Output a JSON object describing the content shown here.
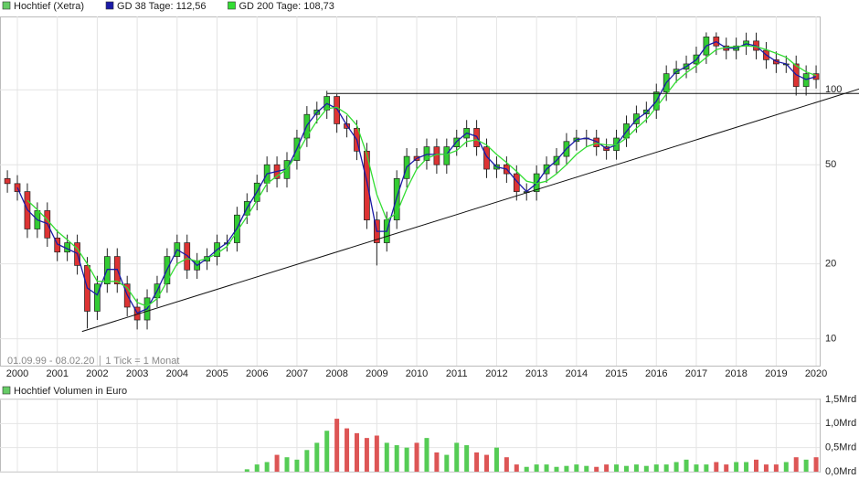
{
  "chart_data": [
    {
      "type": "candlestick",
      "name": "Hochtief (Xetra)",
      "color": "#66cc66",
      "up_color": "#33cc33",
      "down_color": "#dd3333",
      "x": [
        1999.75,
        2000,
        2000.25,
        2000.5,
        2000.75,
        2001,
        2001.25,
        2001.5,
        2001.75,
        2002,
        2002.25,
        2002.5,
        2002.75,
        2003,
        2003.25,
        2003.5,
        2003.75,
        2004,
        2004.25,
        2004.5,
        2004.75,
        2005,
        2005.25,
        2005.5,
        2005.75,
        2006,
        2006.25,
        2006.5,
        2006.75,
        2007,
        2007.25,
        2007.5,
        2007.75,
        2008,
        2008.25,
        2008.5,
        2008.75,
        2009,
        2009.25,
        2009.5,
        2009.75,
        2010,
        2010.25,
        2010.5,
        2010.75,
        2011,
        2011.25,
        2011.5,
        2011.75,
        2012,
        2012.25,
        2012.5,
        2012.75,
        2013,
        2013.25,
        2013.5,
        2013.75,
        2014,
        2014.25,
        2014.5,
        2014.75,
        2015,
        2015.25,
        2015.5,
        2015.75,
        2016,
        2016.25,
        2016.5,
        2016.75,
        2017,
        2017.25,
        2017.5,
        2017.75,
        2018,
        2018.25,
        2018.5,
        2018.75,
        2019,
        2019.25,
        2019.5,
        2019.75,
        2020
      ],
      "open": [
        44,
        42,
        39,
        27.6,
        32.7,
        25.4,
        22.3,
        24.3,
        19.7,
        12.9,
        16.6,
        21.4,
        16.6,
        13.4,
        11.9,
        14.6,
        16.6,
        21.4,
        24.3,
        18.9,
        20.5,
        21.4,
        24.3,
        24.3,
        31.4,
        35.6,
        42.2,
        50,
        44,
        52,
        64,
        79.6,
        83,
        94,
        73,
        70,
        56.7,
        30,
        24.3,
        30,
        44,
        54,
        52,
        59,
        50,
        59,
        64,
        70,
        59,
        48,
        50,
        46,
        39,
        39,
        46,
        50,
        54,
        62,
        64,
        64,
        59,
        57,
        64,
        73,
        80,
        83,
        98,
        116,
        121,
        127,
        138,
        163,
        150,
        144,
        150,
        157,
        144,
        132,
        127,
        127,
        103,
        116
      ],
      "high": [
        47.5,
        45.4,
        42.1,
        35.3,
        35.3,
        27.4,
        26.2,
        26.2,
        21.3,
        17.9,
        23.1,
        23.1,
        17.9,
        14.5,
        15.8,
        17.9,
        23.1,
        26.2,
        26.2,
        22.1,
        23.1,
        26.2,
        26.2,
        33.9,
        38.4,
        45.6,
        54,
        54,
        56.2,
        69.1,
        86,
        89.6,
        99,
        96,
        78.8,
        75.6,
        61.2,
        32.4,
        32.4,
        47.5,
        58.3,
        58.3,
        63.7,
        63.7,
        63.7,
        69.1,
        75.6,
        75.6,
        63.7,
        54,
        54,
        49.7,
        42.1,
        49.7,
        54,
        58.3,
        67,
        69.1,
        69.1,
        69.1,
        63.7,
        69.1,
        78.8,
        86.4,
        89.6,
        105.8,
        125.3,
        130.7,
        137.2,
        149,
        170,
        170,
        162,
        162,
        169.6,
        169.6,
        155.5,
        142.6,
        137.2,
        137.2,
        125.3,
        125.3
      ],
      "low": [
        38.6,
        35.9,
        25.4,
        25.4,
        23.4,
        20.5,
        20.5,
        18.1,
        11,
        11.9,
        15.3,
        15.3,
        12.3,
        10.9,
        10.9,
        13.4,
        15.3,
        19.7,
        17.4,
        17.4,
        18.9,
        19.7,
        22.4,
        22.4,
        28.9,
        32.8,
        38.8,
        40.5,
        40.5,
        47.8,
        58.9,
        73.2,
        76.4,
        67.2,
        64.4,
        52.2,
        27.6,
        19.7,
        22.4,
        27.6,
        40.5,
        47.8,
        47.8,
        46,
        46,
        54.3,
        58.9,
        54.3,
        44.2,
        44.2,
        42.3,
        35.9,
        35.9,
        35.9,
        42.3,
        46,
        49.7,
        57,
        58.9,
        54.3,
        52.4,
        52.4,
        58.9,
        67.2,
        73.6,
        76.4,
        90.2,
        106.7,
        111.3,
        116.8,
        127,
        138,
        132.5,
        132.5,
        138,
        132.5,
        121.4,
        116.8,
        116.8,
        94.8,
        94.8,
        101.2
      ],
      "close": [
        42,
        39,
        27.6,
        32.7,
        25.4,
        22.3,
        24.3,
        19.7,
        12.9,
        16.6,
        21.4,
        16.6,
        13.4,
        11.9,
        14.6,
        16.6,
        21.4,
        24.3,
        18.9,
        20.5,
        21.4,
        24.3,
        24.3,
        31.4,
        35.6,
        42.2,
        50,
        44,
        52,
        64,
        79.6,
        83,
        94,
        73,
        70,
        56.7,
        30,
        24.3,
        30,
        44,
        54,
        52,
        59,
        50,
        59,
        64,
        70,
        59,
        48,
        50,
        46,
        39,
        39,
        46,
        50,
        54,
        62,
        64,
        64,
        59,
        57,
        64,
        73,
        80,
        83,
        98,
        116,
        121,
        127,
        138,
        163,
        150,
        144,
        150,
        157,
        144,
        132,
        127,
        127,
        103,
        116,
        110
      ],
      "overlays": [
        {
          "name": "GD 38 Tage: 112,56",
          "color": "#1a1aa6",
          "values": [
            null,
            40.5,
            33,
            30,
            29,
            24,
            23,
            22,
            16,
            15,
            19,
            19,
            15,
            12.7,
            13.2,
            15.6,
            19,
            22.8,
            21.6,
            19.7,
            21,
            22.8,
            24.3,
            27.8,
            33.5,
            38.9,
            46,
            47,
            48,
            58,
            72,
            81,
            88,
            84,
            72,
            63,
            43,
            27,
            27,
            37,
            49,
            53,
            55,
            55,
            55,
            62,
            67,
            65,
            54,
            49,
            48,
            43,
            39,
            42,
            48,
            52,
            58,
            63,
            64,
            62,
            58,
            60,
            68,
            76,
            81,
            90,
            107,
            118,
            124,
            132,
            150,
            156,
            147,
            147,
            153,
            150,
            138,
            130,
            127,
            115,
            110,
            113
          ]
        },
        {
          "name": "GD 200 Tage: 108,73",
          "color": "#33dd33",
          "values": [
            null,
            null,
            36,
            33,
            30,
            27,
            25,
            23,
            20,
            17,
            17,
            17,
            16,
            14,
            13.5,
            14.5,
            17,
            20,
            21,
            20.5,
            21,
            22,
            23.5,
            27,
            31,
            36,
            42,
            45,
            48,
            55,
            65,
            75,
            84,
            85,
            80,
            72,
            55,
            38,
            30,
            32,
            40,
            48,
            53,
            55,
            55,
            57,
            62,
            63,
            60,
            55,
            51,
            47,
            43,
            42,
            43,
            46,
            50,
            55,
            59,
            61,
            60,
            60,
            64,
            70,
            76,
            85,
            96,
            108,
            117,
            125,
            135,
            145,
            148,
            149,
            150,
            149,
            145,
            140,
            135,
            125,
            118,
            114
          ]
        }
      ],
      "trendlines": [
        {
          "x": [
            2001.62,
            2021.08
          ],
          "y": [
            10.7,
            100.8
          ]
        },
        {
          "x": [
            2007.76,
            2021.08
          ],
          "y": [
            96.7,
            96.7
          ]
        }
      ],
      "xlim": [
        1999.565,
        2020.09
      ],
      "xticks": [
        2000,
        2001,
        2002,
        2003,
        2004,
        2005,
        2006,
        2007,
        2008,
        2009,
        2010,
        2011,
        2012,
        2013,
        2014,
        2015,
        2016,
        2017,
        2018,
        2019,
        2020
      ],
      "ylim": [
        7.8,
        197
      ],
      "yticks": [
        10,
        20,
        50,
        100
      ],
      "log_scale": true,
      "grid": true,
      "range_note": "01.09.99 - 08.02.20",
      "tick_note": "1 Tick = 1 Monat"
    },
    {
      "type": "bar",
      "title": "Hochtief Volumen in Euro",
      "color": "#66cc66",
      "up_color": "#55cc55",
      "down_color": "#dd5555",
      "x": [
        2005.75,
        2006,
        2006.25,
        2006.5,
        2006.75,
        2007,
        2007.25,
        2007.5,
        2007.75,
        2008,
        2008.25,
        2008.5,
        2008.75,
        2009,
        2009.25,
        2009.5,
        2009.75,
        2010,
        2010.25,
        2010.5,
        2010.75,
        2011,
        2011.25,
        2011.5,
        2011.75,
        2012,
        2012.25,
        2012.5,
        2012.75,
        2013,
        2013.25,
        2013.5,
        2013.75,
        2014,
        2014.25,
        2014.5,
        2014.75,
        2015,
        2015.25,
        2015.5,
        2015.75,
        2016,
        2016.25,
        2016.5,
        2016.75,
        2017,
        2017.25,
        2017.5,
        2017.75,
        2018,
        2018.25,
        2018.5,
        2018.75,
        2019,
        2019.25,
        2019.5,
        2019.75,
        2020
      ],
      "values": [
        0.05,
        0.15,
        0.2,
        0.35,
        0.3,
        0.25,
        0.45,
        0.6,
        0.85,
        1.1,
        0.9,
        0.8,
        0.7,
        0.75,
        0.6,
        0.55,
        0.5,
        0.6,
        0.7,
        0.4,
        0.35,
        0.6,
        0.55,
        0.4,
        0.35,
        0.5,
        0.3,
        0.15,
        0.1,
        0.15,
        0.15,
        0.1,
        0.12,
        0.15,
        0.12,
        0.1,
        0.15,
        0.15,
        0.12,
        0.15,
        0.12,
        0.15,
        0.15,
        0.2,
        0.25,
        0.15,
        0.15,
        0.2,
        0.15,
        0.2,
        0.2,
        0.25,
        0.15,
        0.15,
        0.2,
        0.3,
        0.25,
        0.3
      ],
      "ylim": [
        0,
        1.5
      ],
      "yticks": [
        {
          "value": 0,
          "label": "0,0Mrd"
        },
        {
          "value": 0.5,
          "label": "0,5Mrd"
        },
        {
          "value": 1,
          "label": "1,0Mrd"
        },
        {
          "value": 1.5,
          "label": "1,5Mrd"
        }
      ],
      "grid": true
    }
  ]
}
